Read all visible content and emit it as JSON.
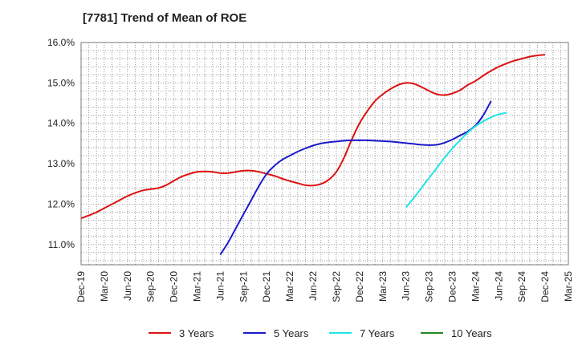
{
  "chart_data": {
    "type": "line",
    "title": "[7781]  Trend of Mean of ROE",
    "xlabel": "",
    "ylabel": "",
    "grid": true,
    "legend_position": "bottom",
    "x_categories": [
      "Dec-19",
      "Mar-20",
      "Jun-20",
      "Sep-20",
      "Dec-20",
      "Mar-21",
      "Jun-21",
      "Sep-21",
      "Dec-21",
      "Mar-22",
      "Jun-22",
      "Sep-22",
      "Dec-22",
      "Mar-23",
      "Jun-23",
      "Sep-23",
      "Dec-23",
      "Mar-24",
      "Jun-24",
      "Sep-24",
      "Dec-24",
      "Mar-25"
    ],
    "y_ticks": [
      "11.0%",
      "12.0%",
      "13.0%",
      "14.0%",
      "15.0%",
      "16.0%"
    ],
    "ylim": [
      10.5,
      16.0
    ],
    "series": [
      {
        "name": "3 Years",
        "color": "#dd1111",
        "points": [
          [
            "Dec-19",
            11.65
          ],
          [
            "Jan-20",
            11.72
          ],
          [
            "Feb-20",
            11.8
          ],
          [
            "Mar-20",
            11.9
          ],
          [
            "Apr-20",
            12.0
          ],
          [
            "May-20",
            12.1
          ],
          [
            "Jun-20",
            12.2
          ],
          [
            "Jul-20",
            12.28
          ],
          [
            "Aug-20",
            12.34
          ],
          [
            "Sep-20",
            12.37
          ],
          [
            "Oct-20",
            12.4
          ],
          [
            "Nov-20",
            12.47
          ],
          [
            "Dec-20",
            12.58
          ],
          [
            "Jan-21",
            12.68
          ],
          [
            "Feb-21",
            12.75
          ],
          [
            "Mar-21",
            12.8
          ],
          [
            "Apr-21",
            12.81
          ],
          [
            "May-21",
            12.8
          ],
          [
            "Jun-21",
            12.77
          ],
          [
            "Jul-21",
            12.77
          ],
          [
            "Aug-21",
            12.8
          ],
          [
            "Sep-21",
            12.83
          ],
          [
            "Oct-21",
            12.83
          ],
          [
            "Nov-21",
            12.8
          ],
          [
            "Dec-21",
            12.75
          ],
          [
            "Jan-22",
            12.7
          ],
          [
            "Feb-22",
            12.63
          ],
          [
            "Mar-22",
            12.57
          ],
          [
            "Apr-22",
            12.52
          ],
          [
            "May-22",
            12.47
          ],
          [
            "Jun-22",
            12.46
          ],
          [
            "Jul-22",
            12.5
          ],
          [
            "Aug-22",
            12.6
          ],
          [
            "Sep-22",
            12.8
          ],
          [
            "Oct-22",
            13.15
          ],
          [
            "Nov-22",
            13.6
          ],
          [
            "Dec-22",
            14.0
          ],
          [
            "Jan-23",
            14.3
          ],
          [
            "Feb-23",
            14.55
          ],
          [
            "Mar-23",
            14.72
          ],
          [
            "Apr-23",
            14.85
          ],
          [
            "May-23",
            14.95
          ],
          [
            "Jun-23",
            15.0
          ],
          [
            "Jul-23",
            14.98
          ],
          [
            "Aug-23",
            14.9
          ],
          [
            "Sep-23",
            14.8
          ],
          [
            "Oct-23",
            14.72
          ],
          [
            "Nov-23",
            14.7
          ],
          [
            "Dec-23",
            14.74
          ],
          [
            "Jan-24",
            14.82
          ],
          [
            "Feb-24",
            14.95
          ],
          [
            "Mar-24",
            15.05
          ],
          [
            "Apr-24",
            15.18
          ],
          [
            "May-24",
            15.3
          ],
          [
            "Jun-24",
            15.4
          ],
          [
            "Jul-24",
            15.48
          ],
          [
            "Aug-24",
            15.55
          ],
          [
            "Sep-24",
            15.6
          ],
          [
            "Oct-24",
            15.65
          ],
          [
            "Nov-24",
            15.68
          ],
          [
            "Dec-24",
            15.7
          ]
        ]
      },
      {
        "name": "5 Years",
        "color": "#1a1acc",
        "points": [
          [
            "Jun-21",
            10.75
          ],
          [
            "Jul-21",
            11.05
          ],
          [
            "Aug-21",
            11.4
          ],
          [
            "Sep-21",
            11.75
          ],
          [
            "Oct-21",
            12.1
          ],
          [
            "Nov-21",
            12.45
          ],
          [
            "Dec-21",
            12.75
          ],
          [
            "Jan-22",
            12.95
          ],
          [
            "Feb-22",
            13.1
          ],
          [
            "Mar-22",
            13.2
          ],
          [
            "Apr-22",
            13.3
          ],
          [
            "May-22",
            13.38
          ],
          [
            "Jun-22",
            13.45
          ],
          [
            "Jul-22",
            13.5
          ],
          [
            "Aug-22",
            13.53
          ],
          [
            "Sep-22",
            13.55
          ],
          [
            "Oct-22",
            13.57
          ],
          [
            "Nov-22",
            13.58
          ],
          [
            "Dec-22",
            13.58
          ],
          [
            "Jan-23",
            13.58
          ],
          [
            "Feb-23",
            13.57
          ],
          [
            "Mar-23",
            13.56
          ],
          [
            "Apr-23",
            13.55
          ],
          [
            "May-23",
            13.53
          ],
          [
            "Jun-23",
            13.51
          ],
          [
            "Jul-23",
            13.49
          ],
          [
            "Aug-23",
            13.47
          ],
          [
            "Sep-23",
            13.46
          ],
          [
            "Oct-23",
            13.47
          ],
          [
            "Nov-23",
            13.52
          ],
          [
            "Dec-23",
            13.6
          ],
          [
            "Jan-24",
            13.7
          ],
          [
            "Feb-24",
            13.8
          ],
          [
            "Mar-24",
            13.95
          ],
          [
            "Apr-24",
            14.2
          ],
          [
            "May-24",
            14.55
          ]
        ]
      },
      {
        "name": "7 Years",
        "color": "#22e5e5",
        "points": [
          [
            "Jun-23",
            11.92
          ],
          [
            "Jul-23",
            12.15
          ],
          [
            "Aug-23",
            12.4
          ],
          [
            "Sep-23",
            12.65
          ],
          [
            "Oct-23",
            12.9
          ],
          [
            "Nov-23",
            13.15
          ],
          [
            "Dec-23",
            13.38
          ],
          [
            "Jan-24",
            13.58
          ],
          [
            "Feb-24",
            13.77
          ],
          [
            "Mar-24",
            13.93
          ],
          [
            "Apr-24",
            14.05
          ],
          [
            "May-24",
            14.15
          ],
          [
            "Jun-24",
            14.22
          ],
          [
            "Jul-24",
            14.26
          ]
        ]
      },
      {
        "name": "10 Years",
        "color": "#228822",
        "points": []
      }
    ]
  }
}
